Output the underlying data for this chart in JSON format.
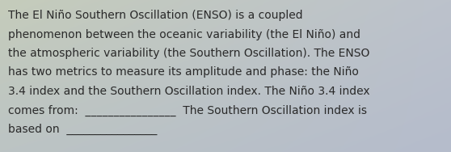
{
  "text_color": "#2a2a2a",
  "font_size": 10.0,
  "bg_color_topleft": "#c5ccbb",
  "bg_color_topright": "#c0c5cc",
  "bg_color_bottomleft": "#c0c5cc",
  "bg_color_bottomright": "#b8bfcc",
  "line1": "The El Niño Southern Oscillation (ENSO) is a coupled",
  "line2": "phenomenon between the oceanic variability (the El Niño) and",
  "line3": "the atmospheric variability (the Southern Oscillation). The ENSO",
  "line4": "has two metrics to measure its amplitude and phase: the Niño",
  "line5": "3.4 index and the Southern Oscillation index. The Niño 3.4 index",
  "line6": "comes from:  ________________  The Southern Oscillation index is",
  "line7": "based on  ________________"
}
